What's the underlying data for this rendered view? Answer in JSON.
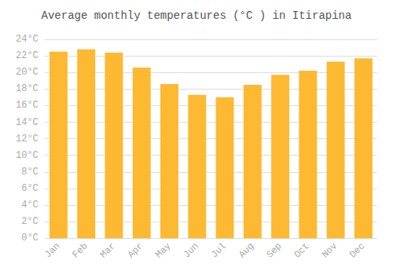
{
  "chart_data": {
    "type": "bar",
    "title": "Average monthly temperatures (°C ) in Itirapina",
    "categories": [
      "Jan",
      "Feb",
      "Mar",
      "Apr",
      "May",
      "Jun",
      "Jul",
      "Aug",
      "Sep",
      "Oct",
      "Nov",
      "Dec"
    ],
    "values": [
      22.5,
      22.8,
      22.4,
      20.6,
      18.6,
      17.3,
      17.0,
      18.5,
      19.7,
      20.2,
      21.3,
      21.7
    ],
    "color": "#FDB931",
    "ylim": [
      0,
      24
    ],
    "yticks": [
      {
        "value": 0,
        "label": "0°C"
      },
      {
        "value": 2,
        "label": "2°C"
      },
      {
        "value": 4,
        "label": "4°C"
      },
      {
        "value": 6,
        "label": "6°C"
      },
      {
        "value": 8,
        "label": "8°C"
      },
      {
        "value": 10,
        "label": "10°C"
      },
      {
        "value": 12,
        "label": "12°C"
      },
      {
        "value": 14,
        "label": "14°C"
      },
      {
        "value": 16,
        "label": "16°C"
      },
      {
        "value": 18,
        "label": "18°C"
      },
      {
        "value": 20,
        "label": "20°C"
      },
      {
        "value": 22,
        "label": "22°C"
      },
      {
        "value": 24,
        "label": "24°C"
      }
    ],
    "grid": true
  }
}
